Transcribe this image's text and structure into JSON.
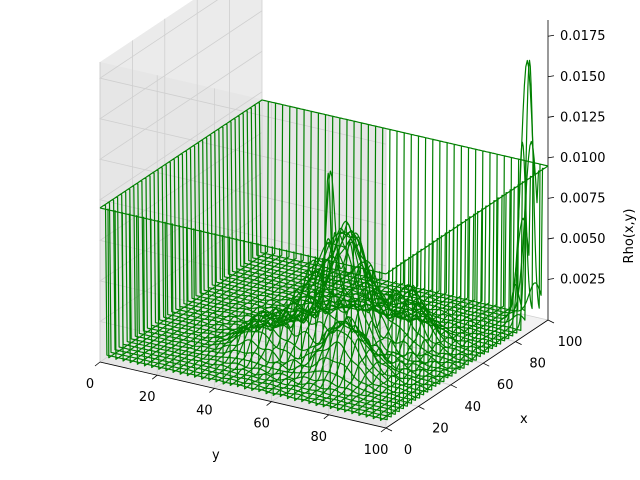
{
  "chart_data": {
    "type": "surface-wireframe",
    "title": "",
    "xlabel": "x",
    "ylabel": "y",
    "zlabel": "Rho(x,y)",
    "xlim": [
      0,
      100
    ],
    "ylim": [
      0,
      100
    ],
    "zlim": [
      0.0,
      0.0185
    ],
    "x_ticks": [
      "0",
      "20",
      "40",
      "60",
      "80",
      "100"
    ],
    "y_ticks": [
      "0",
      "20",
      "40",
      "60",
      "80",
      "100"
    ],
    "z_ticks": [
      "0.0025",
      "0.0050",
      "0.0075",
      "0.0100",
      "0.0125",
      "0.0150",
      "0.0175"
    ],
    "grid": true,
    "line_color": "#008000",
    "boundary_level": 0.0095,
    "peaks": [
      {
        "x": 93,
        "y": 97,
        "height": 0.0165,
        "width": 2.2
      },
      {
        "x": 55,
        "y": 57,
        "height": 0.0052,
        "width": 6
      },
      {
        "x": 40,
        "y": 53,
        "height": 0.0042,
        "width": 6
      },
      {
        "x": 45,
        "y": 62,
        "height": 0.0045,
        "width": 5
      },
      {
        "x": 57,
        "y": 48,
        "height": 0.0078,
        "width": 1.5
      },
      {
        "x": 30,
        "y": 40,
        "height": 0.002,
        "width": 6
      },
      {
        "x": 28,
        "y": 70,
        "height": 0.003,
        "width": 6
      },
      {
        "x": 60,
        "y": 74,
        "height": 0.003,
        "width": 5
      }
    ]
  }
}
